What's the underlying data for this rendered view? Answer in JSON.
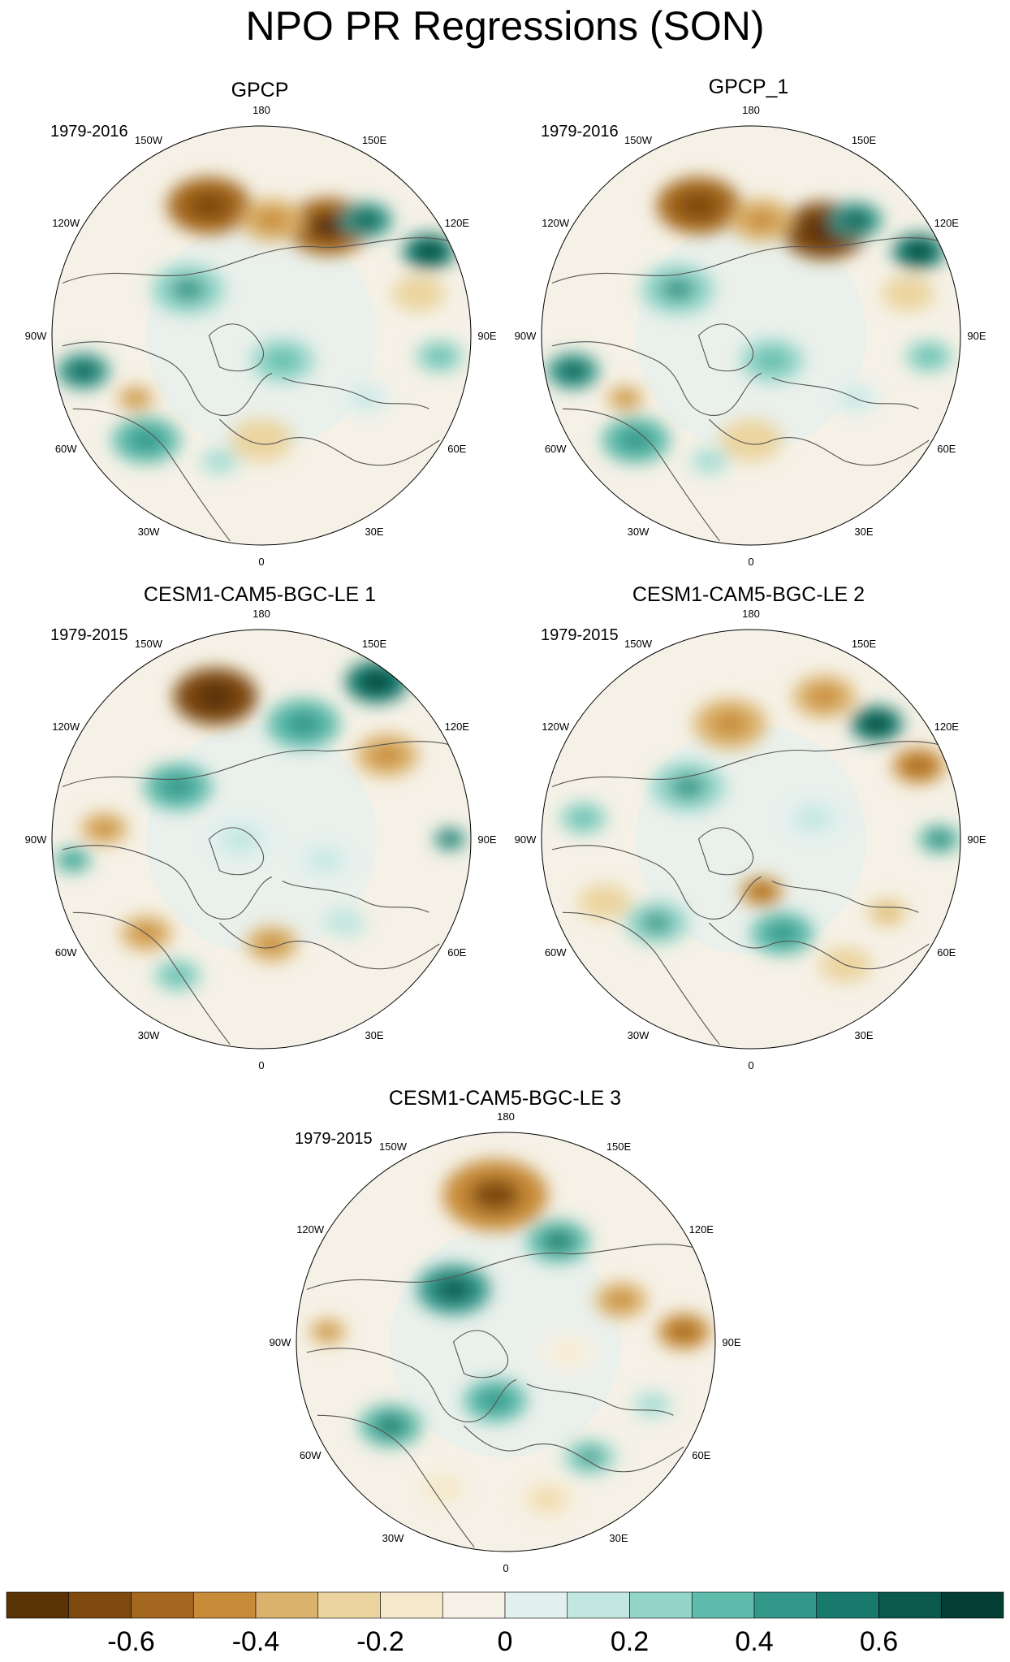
{
  "chart_data": {
    "type": "map-panels",
    "title": "NPO PR Regressions (SON)",
    "projection": "north polar stereographic",
    "longitude_labels": [
      "180",
      "150E",
      "120E",
      "90E",
      "60E",
      "30E",
      "0",
      "30W",
      "60W",
      "90W",
      "120W",
      "150W"
    ],
    "panels": [
      {
        "name": "GPCP",
        "years": "1979-2016"
      },
      {
        "name": "GPCP_1",
        "years": "1979-2016"
      },
      {
        "name": "CESM1-CAM5-BGC-LE 1",
        "years": "1979-2015"
      },
      {
        "name": "CESM1-CAM5-BGC-LE 2",
        "years": "1979-2015"
      },
      {
        "name": "CESM1-CAM5-BGC-LE 3",
        "years": "1979-2015"
      }
    ],
    "colorbar": {
      "levels": [
        -0.7,
        -0.6,
        -0.5,
        -0.4,
        -0.3,
        -0.2,
        -0.1,
        0,
        0.1,
        0.2,
        0.3,
        0.4,
        0.5,
        0.6,
        0.7
      ],
      "tick_labels": [
        "-0.6",
        "-0.4",
        "-0.2",
        "0",
        "0.2",
        "0.4",
        "0.6"
      ],
      "tick_values": [
        -0.6,
        -0.4,
        -0.2,
        0,
        0.2,
        0.4,
        0.6
      ],
      "colors": [
        "#5a3307",
        "#7e4a10",
        "#a4671f",
        "#c78b39",
        "#dbb26c",
        "#ebd49f",
        "#f6e9cb",
        "#f5f1e6",
        "#e2f0ee",
        "#c2e7e0",
        "#93d5c8",
        "#5fbcac",
        "#33978a",
        "#177a6d",
        "#095a4d",
        "#033d33"
      ]
    }
  }
}
